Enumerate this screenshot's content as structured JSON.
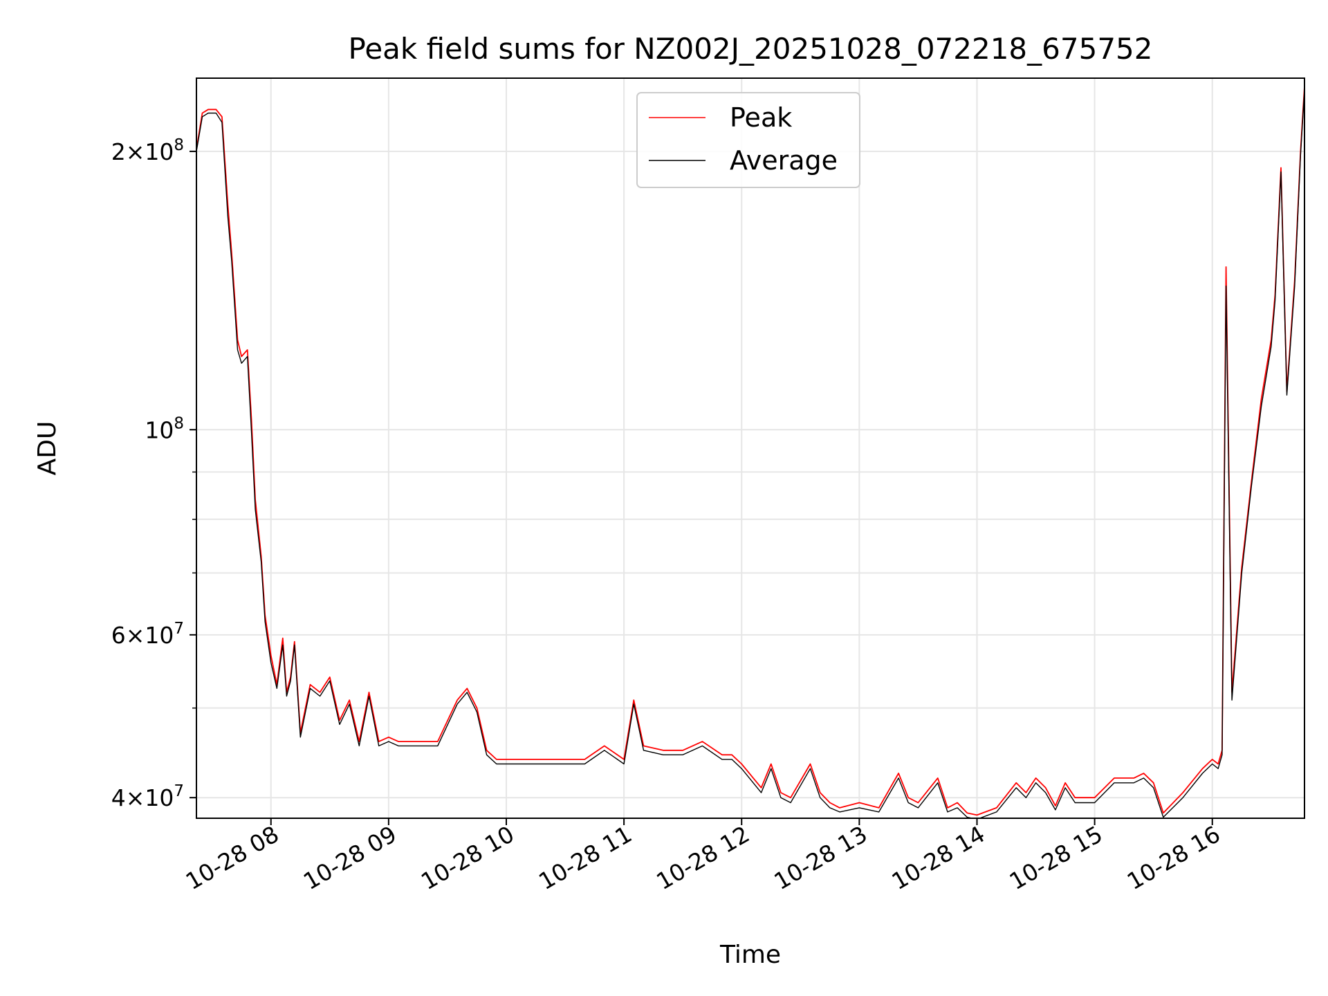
{
  "chart_data": {
    "type": "line",
    "title": "Peak field sums for NZ002J_20251028_072218_675752",
    "xlabel": "Time",
    "ylabel": "ADU",
    "yscale": "log",
    "grid": true,
    "legend": "upper center",
    "xlim": [
      "2025-10-28 07:22",
      "2025-10-28 16:47"
    ],
    "ylim": [
      38000000,
      240000000
    ],
    "x_ticks": [
      "10-28 08",
      "10-28 09",
      "10-28 10",
      "10-28 11",
      "10-28 12",
      "10-28 13",
      "10-28 14",
      "10-28 15",
      "10-28 16"
    ],
    "y_ticks": [
      {
        "value": 40000000,
        "mant": "4",
        "exp": "7"
      },
      {
        "value": 60000000,
        "mant": "6",
        "exp": "7"
      },
      {
        "value": 100000000,
        "mant": "",
        "exp": "8"
      },
      {
        "value": 200000000,
        "mant": "2",
        "exp": "8"
      }
    ],
    "series": [
      {
        "name": "Peak",
        "color": "#ff0000"
      },
      {
        "name": "Average",
        "color": "#000000"
      }
    ],
    "x": [
      "2025-10-28 07:22",
      "2025-10-28 07:25",
      "2025-10-28 07:28",
      "2025-10-28 07:32",
      "2025-10-28 07:35",
      "2025-10-28 07:38",
      "2025-10-28 07:40",
      "2025-10-28 07:43",
      "2025-10-28 07:45",
      "2025-10-28 07:48",
      "2025-10-28 07:50",
      "2025-10-28 07:52",
      "2025-10-28 07:55",
      "2025-10-28 07:57",
      "2025-10-28 08:00",
      "2025-10-28 08:03",
      "2025-10-28 08:06",
      "2025-10-28 08:08",
      "2025-10-28 08:10",
      "2025-10-28 08:12",
      "2025-10-28 08:15",
      "2025-10-28 08:20",
      "2025-10-28 08:25",
      "2025-10-28 08:30",
      "2025-10-28 08:35",
      "2025-10-28 08:40",
      "2025-10-28 08:45",
      "2025-10-28 08:50",
      "2025-10-28 08:55",
      "2025-10-28 09:00",
      "2025-10-28 09:05",
      "2025-10-28 09:15",
      "2025-10-28 09:25",
      "2025-10-28 09:35",
      "2025-10-28 09:40",
      "2025-10-28 09:45",
      "2025-10-28 09:50",
      "2025-10-28 09:55",
      "2025-10-28 10:00",
      "2025-10-28 10:20",
      "2025-10-28 10:40",
      "2025-10-28 10:50",
      "2025-10-28 11:00",
      "2025-10-28 11:05",
      "2025-10-28 11:10",
      "2025-10-28 11:20",
      "2025-10-28 11:30",
      "2025-10-28 11:40",
      "2025-10-28 11:50",
      "2025-10-28 11:55",
      "2025-10-28 12:00",
      "2025-10-28 12:10",
      "2025-10-28 12:15",
      "2025-10-28 12:20",
      "2025-10-28 12:25",
      "2025-10-28 12:35",
      "2025-10-28 12:40",
      "2025-10-28 12:45",
      "2025-10-28 12:50",
      "2025-10-28 13:00",
      "2025-10-28 13:10",
      "2025-10-28 13:20",
      "2025-10-28 13:25",
      "2025-10-28 13:30",
      "2025-10-28 13:40",
      "2025-10-28 13:45",
      "2025-10-28 13:50",
      "2025-10-28 13:55",
      "2025-10-28 14:00",
      "2025-10-28 14:10",
      "2025-10-28 14:20",
      "2025-10-28 14:25",
      "2025-10-28 14:30",
      "2025-10-28 14:35",
      "2025-10-28 14:40",
      "2025-10-28 14:45",
      "2025-10-28 14:50",
      "2025-10-28 15:00",
      "2025-10-28 15:10",
      "2025-10-28 15:20",
      "2025-10-28 15:25",
      "2025-10-28 15:30",
      "2025-10-28 15:35",
      "2025-10-28 15:45",
      "2025-10-28 15:55",
      "2025-10-28 16:00",
      "2025-10-28 16:03",
      "2025-10-28 16:05",
      "2025-10-28 16:07",
      "2025-10-28 16:10",
      "2025-10-28 16:15",
      "2025-10-28 16:20",
      "2025-10-28 16:25",
      "2025-10-28 16:30",
      "2025-10-28 16:32",
      "2025-10-28 16:35",
      "2025-10-28 16:38",
      "2025-10-28 16:42",
      "2025-10-28 16:45",
      "2025-10-28 16:47"
    ],
    "peak": [
      201000000,
      220000000,
      222000000,
      222000000,
      218000000,
      175000000,
      155000000,
      125000000,
      120000000,
      122000000,
      103000000,
      84000000,
      73000000,
      63000000,
      57000000,
      53000000,
      59500000,
      52000000,
      54000000,
      59000000,
      47000000,
      53000000,
      52000000,
      54000000,
      48500000,
      51000000,
      46000000,
      52000000,
      46000000,
      46500000,
      46000000,
      46000000,
      46000000,
      51000000,
      52500000,
      50000000,
      45000000,
      44000000,
      44000000,
      44000000,
      44000000,
      45500000,
      44000000,
      51000000,
      45500000,
      45000000,
      45000000,
      46000000,
      44500000,
      44500000,
      43500000,
      41000000,
      43500000,
      40500000,
      40000000,
      43500000,
      40500000,
      39500000,
      39000000,
      39500000,
      39000000,
      42500000,
      40000000,
      39500000,
      42000000,
      39000000,
      39500000,
      38500000,
      38300000,
      39000000,
      41500000,
      40500000,
      42000000,
      41000000,
      39200000,
      41500000,
      40000000,
      40000000,
      42000000,
      42000000,
      42500000,
      41500000,
      38500000,
      40500000,
      43000000,
      44000000,
      43500000,
      45000000,
      150000000,
      52000000,
      71000000,
      88000000,
      108000000,
      125000000,
      140000000,
      192000000,
      110000000,
      145000000,
      200000000,
      235000000
    ],
    "average": [
      200000000,
      218000000,
      220000000,
      220000000,
      215000000,
      170000000,
      152000000,
      122000000,
      118000000,
      120000000,
      100000000,
      82000000,
      72000000,
      62000000,
      56000000,
      52500000,
      58500000,
      51500000,
      53500000,
      58500000,
      46500000,
      52500000,
      51500000,
      53500000,
      48000000,
      50500000,
      45500000,
      51500000,
      45500000,
      46000000,
      45500000,
      45500000,
      45500000,
      50500000,
      52000000,
      49500000,
      44500000,
      43500000,
      43500000,
      43500000,
      43500000,
      45000000,
      43500000,
      50500000,
      45000000,
      44500000,
      44500000,
      45500000,
      44000000,
      44000000,
      43000000,
      40500000,
      43000000,
      40000000,
      39500000,
      43000000,
      40000000,
      39000000,
      38600000,
      39000000,
      38600000,
      42000000,
      39500000,
      39000000,
      41500000,
      38600000,
      39000000,
      38100000,
      37900000,
      38600000,
      41000000,
      40000000,
      41500000,
      40500000,
      38800000,
      41000000,
      39500000,
      39500000,
      41500000,
      41500000,
      42000000,
      41000000,
      38100000,
      40000000,
      42500000,
      43500000,
      43000000,
      44500000,
      143000000,
      51000000,
      70000000,
      87000000,
      106000000,
      123000000,
      138000000,
      190000000,
      109000000,
      143000000,
      198000000,
      233000000
    ]
  }
}
